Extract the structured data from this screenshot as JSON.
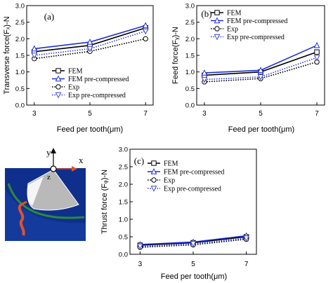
{
  "colors": {
    "fem": "#000000",
    "fem_pre": "#1f2fd0",
    "exp": "#000000",
    "exp_pre": "#3b46d6",
    "axis": "#000000"
  },
  "chart_data": [
    {
      "type": "line",
      "panel": "(a)",
      "xlabel": "Feed per tooth(μm)",
      "ylabel": "Transverse force(Fₓ)-N",
      "x": [
        3,
        5,
        7
      ],
      "xticks": [
        "3",
        "5",
        "7"
      ],
      "ylim": [
        0.0,
        3.0
      ],
      "yticks": [
        "0.0",
        "0.5",
        "1.0",
        "1.5",
        "2.0",
        "2.5",
        "3.0"
      ],
      "legend_position": "lower-right",
      "series": [
        {
          "name": "FEM",
          "style": "solid",
          "marker": "square",
          "color_key": "fem",
          "values": [
            1.61,
            1.8,
            2.33
          ]
        },
        {
          "name": "FEM pre-compressed",
          "style": "solid",
          "marker": "triangle",
          "color_key": "fem_pre",
          "values": [
            1.7,
            1.9,
            2.4
          ]
        },
        {
          "name": "Exp",
          "style": "dotted",
          "marker": "circle",
          "color_key": "exp",
          "values": [
            1.4,
            1.62,
            2.0
          ]
        },
        {
          "name": "Exp pre-compressed",
          "style": "dotted",
          "marker": "triangle-down",
          "color_key": "exp_pre",
          "values": [
            1.5,
            1.7,
            2.23
          ]
        }
      ]
    },
    {
      "type": "line",
      "panel": "(b)",
      "xlabel": "Feed per tooth(μm)",
      "ylabel": "Feed force(Fᵧ)-N",
      "x": [
        3,
        5,
        7
      ],
      "xticks": [
        "3",
        "5",
        "7"
      ],
      "ylim": [
        0.0,
        3.0
      ],
      "yticks": [
        "0.0",
        "0.5",
        "1.0",
        "1.5",
        "2.0",
        "2.5",
        "3.0"
      ],
      "legend_position": "upper-left",
      "series": [
        {
          "name": "FEM",
          "style": "solid",
          "marker": "square",
          "color_key": "fem",
          "values": [
            0.9,
            1.0,
            1.6
          ]
        },
        {
          "name": "FEM pre-compressed",
          "style": "solid",
          "marker": "triangle",
          "color_key": "fem_pre",
          "values": [
            0.97,
            1.05,
            1.8
          ]
        },
        {
          "name": "Exp",
          "style": "dotted",
          "marker": "circle",
          "color_key": "exp",
          "values": [
            0.7,
            0.8,
            1.3
          ]
        },
        {
          "name": "Exp pre-compressed",
          "style": "dotted",
          "marker": "triangle-down",
          "color_key": "exp_pre",
          "values": [
            0.77,
            0.85,
            1.43
          ]
        }
      ]
    },
    {
      "type": "line",
      "panel": "(c)",
      "xlabel": "Feed per tooth(μm)",
      "ylabel": "Thrust force (Fᵩ)-N",
      "x": [
        3,
        5,
        7
      ],
      "xticks": [
        "3",
        "5",
        "7"
      ],
      "ylim": [
        0.0,
        3.0
      ],
      "yticks": [
        "0.0",
        "0.5",
        "1.0",
        "1.5",
        "2.0",
        "2.5",
        "3.0"
      ],
      "legend_position": "upper-left",
      "series": [
        {
          "name": "FEM",
          "style": "solid",
          "marker": "square",
          "color_key": "fem",
          "values": [
            0.26,
            0.33,
            0.5
          ]
        },
        {
          "name": "FEM pre-compressed",
          "style": "solid",
          "marker": "triangle",
          "color_key": "fem_pre",
          "values": [
            0.28,
            0.35,
            0.53
          ]
        },
        {
          "name": "Exp",
          "style": "dotted",
          "marker": "circle",
          "color_key": "exp",
          "values": [
            0.2,
            0.27,
            0.43
          ]
        },
        {
          "name": "Exp pre-compressed",
          "style": "dotted",
          "marker": "triangle-down",
          "color_key": "exp_pre",
          "values": [
            0.23,
            0.3,
            0.46
          ]
        }
      ]
    }
  ],
  "inset": {
    "axis_y": "y",
    "axis_x": "x",
    "axis_z": "z"
  }
}
